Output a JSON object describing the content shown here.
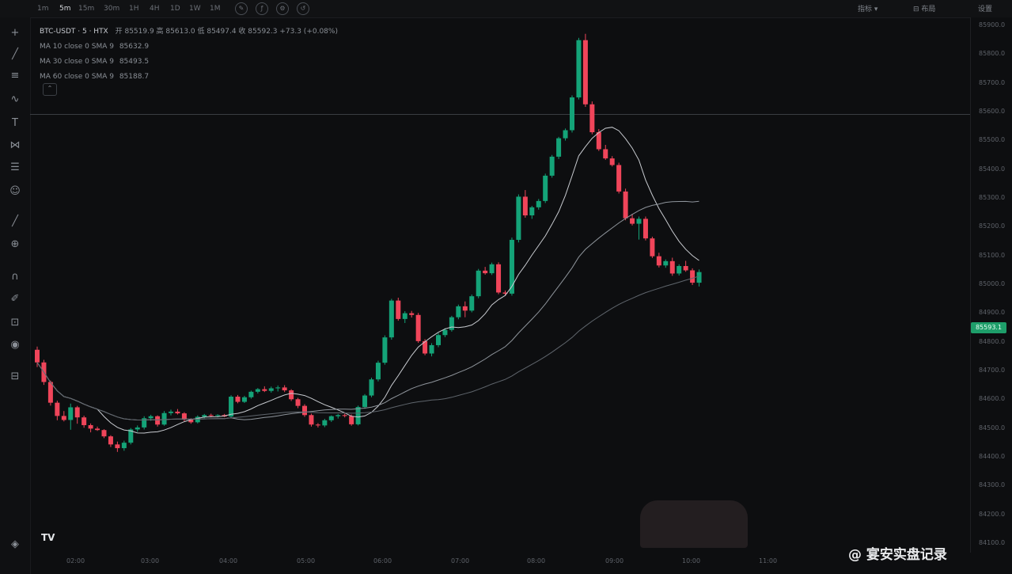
{
  "timeframes": [
    "1m",
    "5m",
    "15m",
    "30m",
    "1H",
    "4H",
    "1D",
    "1W",
    "1M"
  ],
  "active_timeframe": "5m",
  "top_right": {
    "item1": "指标 ▾",
    "item2": "⊟ 布局",
    "item3": "设置"
  },
  "legend": {
    "symbol": "BTC-USDT · 5 · HTX",
    "ohlc": "开 85519.9 高 85613.0 低 85497.4 收 85592.3 +73.3 (+0.08%)",
    "ma": [
      {
        "label": "MA 10 close 0 SMA 9",
        "value": "85632.9",
        "color": "#c8cbd0"
      },
      {
        "label": "MA 30 close 0 SMA 9",
        "value": "85493.5",
        "color": "#8e949b"
      },
      {
        "label": "MA 60 close 0 SMA 9",
        "value": "85188.7",
        "color": "#5f656c"
      }
    ]
  },
  "current_price_label": "85593.1",
  "watermark": "@ 宴安实盘记录",
  "tv_logo": "TV",
  "colors": {
    "up": "#14a378",
    "down": "#f0455a",
    "ma10": "#c8cbd0",
    "ma30": "#8e949b",
    "ma60": "#5f656c"
  },
  "chart_data": {
    "type": "candlestick",
    "symbol": "BTC-USDT",
    "interval": "5m",
    "x_ticks": [
      "02:00",
      "03:00",
      "04:00",
      "05:00",
      "06:00",
      "07:00",
      "08:00",
      "09:00",
      "10:00",
      "11:00"
    ],
    "y_ticks": [
      84100,
      84200,
      84300,
      84400,
      84500,
      84600,
      84700,
      84800,
      84900,
      85000,
      85100,
      85200,
      85300,
      85400,
      85500,
      85600,
      85700,
      85800,
      85900
    ],
    "ylim": [
      84070,
      85930
    ],
    "current_price": 85593.1,
    "grid": false,
    "candles": [
      {
        "o": 84775,
        "h": 84786,
        "l": 84715,
        "c": 84731
      },
      {
        "o": 84731,
        "h": 84740,
        "l": 84653,
        "c": 84663
      },
      {
        "o": 84663,
        "h": 84668,
        "l": 84581,
        "c": 84591
      },
      {
        "o": 84591,
        "h": 84598,
        "l": 84530,
        "c": 84545
      },
      {
        "o": 84545,
        "h": 84562,
        "l": 84526,
        "c": 84531
      },
      {
        "o": 84531,
        "h": 84588,
        "l": 84497,
        "c": 84575
      },
      {
        "o": 84575,
        "h": 84580,
        "l": 84518,
        "c": 84540
      },
      {
        "o": 84540,
        "h": 84546,
        "l": 84504,
        "c": 84513
      },
      {
        "o": 84513,
        "h": 84519,
        "l": 84488,
        "c": 84501
      },
      {
        "o": 84501,
        "h": 84508,
        "l": 84493,
        "c": 84496
      },
      {
        "o": 84496,
        "h": 84499,
        "l": 84468,
        "c": 84474
      },
      {
        "o": 84474,
        "h": 84478,
        "l": 84437,
        "c": 84446
      },
      {
        "o": 84446,
        "h": 84456,
        "l": 84420,
        "c": 84433
      },
      {
        "o": 84433,
        "h": 84459,
        "l": 84424,
        "c": 84452
      },
      {
        "o": 84452,
        "h": 84503,
        "l": 84446,
        "c": 84498
      },
      {
        "o": 84498,
        "h": 84512,
        "l": 84490,
        "c": 84505
      },
      {
        "o": 84505,
        "h": 84544,
        "l": 84498,
        "c": 84537
      },
      {
        "o": 84537,
        "h": 84549,
        "l": 84528,
        "c": 84544
      },
      {
        "o": 84544,
        "h": 84547,
        "l": 84508,
        "c": 84515
      },
      {
        "o": 84515,
        "h": 84562,
        "l": 84511,
        "c": 84555
      },
      {
        "o": 84555,
        "h": 84567,
        "l": 84547,
        "c": 84560
      },
      {
        "o": 84560,
        "h": 84569,
        "l": 84550,
        "c": 84554
      },
      {
        "o": 84554,
        "h": 84558,
        "l": 84527,
        "c": 84532
      },
      {
        "o": 84532,
        "h": 84537,
        "l": 84518,
        "c": 84523
      },
      {
        "o": 84523,
        "h": 84547,
        "l": 84519,
        "c": 84542
      },
      {
        "o": 84542,
        "h": 84552,
        "l": 84537,
        "c": 84548
      },
      {
        "o": 84548,
        "h": 84553,
        "l": 84540,
        "c": 84545
      },
      {
        "o": 84545,
        "h": 84551,
        "l": 84540,
        "c": 84548
      },
      {
        "o": 84548,
        "h": 84552,
        "l": 84541,
        "c": 84543
      },
      {
        "o": 84543,
        "h": 84617,
        "l": 84538,
        "c": 84612
      },
      {
        "o": 84612,
        "h": 84618,
        "l": 84589,
        "c": 84594
      },
      {
        "o": 84594,
        "h": 84615,
        "l": 84590,
        "c": 84610
      },
      {
        "o": 84610,
        "h": 84633,
        "l": 84605,
        "c": 84629
      },
      {
        "o": 84629,
        "h": 84642,
        "l": 84623,
        "c": 84638
      },
      {
        "o": 84638,
        "h": 84648,
        "l": 84628,
        "c": 84632
      },
      {
        "o": 84632,
        "h": 84647,
        "l": 84626,
        "c": 84641
      },
      {
        "o": 84641,
        "h": 84651,
        "l": 84630,
        "c": 84644
      },
      {
        "o": 84644,
        "h": 84652,
        "l": 84628,
        "c": 84634
      },
      {
        "o": 84634,
        "h": 84638,
        "l": 84597,
        "c": 84603
      },
      {
        "o": 84603,
        "h": 84608,
        "l": 84572,
        "c": 84580
      },
      {
        "o": 84580,
        "h": 84586,
        "l": 84542,
        "c": 84548
      },
      {
        "o": 84548,
        "h": 84553,
        "l": 84508,
        "c": 84515
      },
      {
        "o": 84515,
        "h": 84520,
        "l": 84505,
        "c": 84512
      },
      {
        "o": 84512,
        "h": 84535,
        "l": 84506,
        "c": 84530
      },
      {
        "o": 84530,
        "h": 84547,
        "l": 84524,
        "c": 84544
      },
      {
        "o": 84544,
        "h": 84552,
        "l": 84536,
        "c": 84548
      },
      {
        "o": 84548,
        "h": 84553,
        "l": 84540,
        "c": 84545
      },
      {
        "o": 84545,
        "h": 84550,
        "l": 84511,
        "c": 84516
      },
      {
        "o": 84516,
        "h": 84581,
        "l": 84512,
        "c": 84576
      },
      {
        "o": 84576,
        "h": 84621,
        "l": 84570,
        "c": 84616
      },
      {
        "o": 84616,
        "h": 84678,
        "l": 84610,
        "c": 84672
      },
      {
        "o": 84672,
        "h": 84737,
        "l": 84665,
        "c": 84730
      },
      {
        "o": 84730,
        "h": 84825,
        "l": 84723,
        "c": 84818
      },
      {
        "o": 84818,
        "h": 84952,
        "l": 84810,
        "c": 84946
      },
      {
        "o": 84946,
        "h": 84956,
        "l": 84876,
        "c": 84882
      },
      {
        "o": 84882,
        "h": 84909,
        "l": 84868,
        "c": 84902
      },
      {
        "o": 84902,
        "h": 84910,
        "l": 84887,
        "c": 84896
      },
      {
        "o": 84896,
        "h": 84903,
        "l": 84799,
        "c": 84805
      },
      {
        "o": 84805,
        "h": 84812,
        "l": 84756,
        "c": 84762
      },
      {
        "o": 84762,
        "h": 84798,
        "l": 84752,
        "c": 84791
      },
      {
        "o": 84791,
        "h": 84833,
        "l": 84784,
        "c": 84826
      },
      {
        "o": 84826,
        "h": 84850,
        "l": 84819,
        "c": 84844
      },
      {
        "o": 84844,
        "h": 84893,
        "l": 84838,
        "c": 84888
      },
      {
        "o": 84888,
        "h": 84932,
        "l": 84881,
        "c": 84926
      },
      {
        "o": 84926,
        "h": 84943,
        "l": 84888,
        "c": 84911
      },
      {
        "o": 84911,
        "h": 84967,
        "l": 84905,
        "c": 84961
      },
      {
        "o": 84961,
        "h": 85056,
        "l": 84954,
        "c": 85050
      },
      {
        "o": 85050,
        "h": 85063,
        "l": 85036,
        "c": 85041
      },
      {
        "o": 85041,
        "h": 85078,
        "l": 85035,
        "c": 85072
      },
      {
        "o": 85072,
        "h": 85079,
        "l": 84968,
        "c": 84974
      },
      {
        "o": 84974,
        "h": 84981,
        "l": 84963,
        "c": 84970
      },
      {
        "o": 84970,
        "h": 85165,
        "l": 84963,
        "c": 85157
      },
      {
        "o": 85157,
        "h": 85315,
        "l": 85148,
        "c": 85307
      },
      {
        "o": 85307,
        "h": 85330,
        "l": 85234,
        "c": 85242
      },
      {
        "o": 85242,
        "h": 85275,
        "l": 85230,
        "c": 85270
      },
      {
        "o": 85270,
        "h": 85299,
        "l": 85262,
        "c": 85292
      },
      {
        "o": 85292,
        "h": 85387,
        "l": 85285,
        "c": 85380
      },
      {
        "o": 85380,
        "h": 85452,
        "l": 85373,
        "c": 85446
      },
      {
        "o": 85446,
        "h": 85515,
        "l": 85438,
        "c": 85510
      },
      {
        "o": 85510,
        "h": 85544,
        "l": 85502,
        "c": 85538
      },
      {
        "o": 85538,
        "h": 85659,
        "l": 85530,
        "c": 85652
      },
      {
        "o": 85652,
        "h": 85859,
        "l": 85645,
        "c": 85851
      },
      {
        "o": 85851,
        "h": 85873,
        "l": 85619,
        "c": 85628
      },
      {
        "o": 85628,
        "h": 85638,
        "l": 85524,
        "c": 85531
      },
      {
        "o": 85531,
        "h": 85542,
        "l": 85466,
        "c": 85472
      },
      {
        "o": 85472,
        "h": 85487,
        "l": 85435,
        "c": 85440
      },
      {
        "o": 85440,
        "h": 85448,
        "l": 85412,
        "c": 85417
      },
      {
        "o": 85417,
        "h": 85425,
        "l": 85318,
        "c": 85325
      },
      {
        "o": 85325,
        "h": 85335,
        "l": 85225,
        "c": 85232
      },
      {
        "o": 85232,
        "h": 85247,
        "l": 85207,
        "c": 85213
      },
      {
        "o": 85213,
        "h": 85238,
        "l": 85158,
        "c": 85230
      },
      {
        "o": 85230,
        "h": 85238,
        "l": 85155,
        "c": 85162
      },
      {
        "o": 85162,
        "h": 85168,
        "l": 85094,
        "c": 85100
      },
      {
        "o": 85100,
        "h": 85112,
        "l": 85061,
        "c": 85068
      },
      {
        "o": 85068,
        "h": 85089,
        "l": 85060,
        "c": 85083
      },
      {
        "o": 85083,
        "h": 85095,
        "l": 85032,
        "c": 85040
      },
      {
        "o": 85040,
        "h": 85072,
        "l": 85033,
        "c": 85066
      },
      {
        "o": 85066,
        "h": 85084,
        "l": 85046,
        "c": 85051
      },
      {
        "o": 85051,
        "h": 85058,
        "l": 85000,
        "c": 85008
      },
      {
        "o": 85008,
        "h": 85054,
        "l": 84995,
        "c": 85045
      }
    ]
  }
}
